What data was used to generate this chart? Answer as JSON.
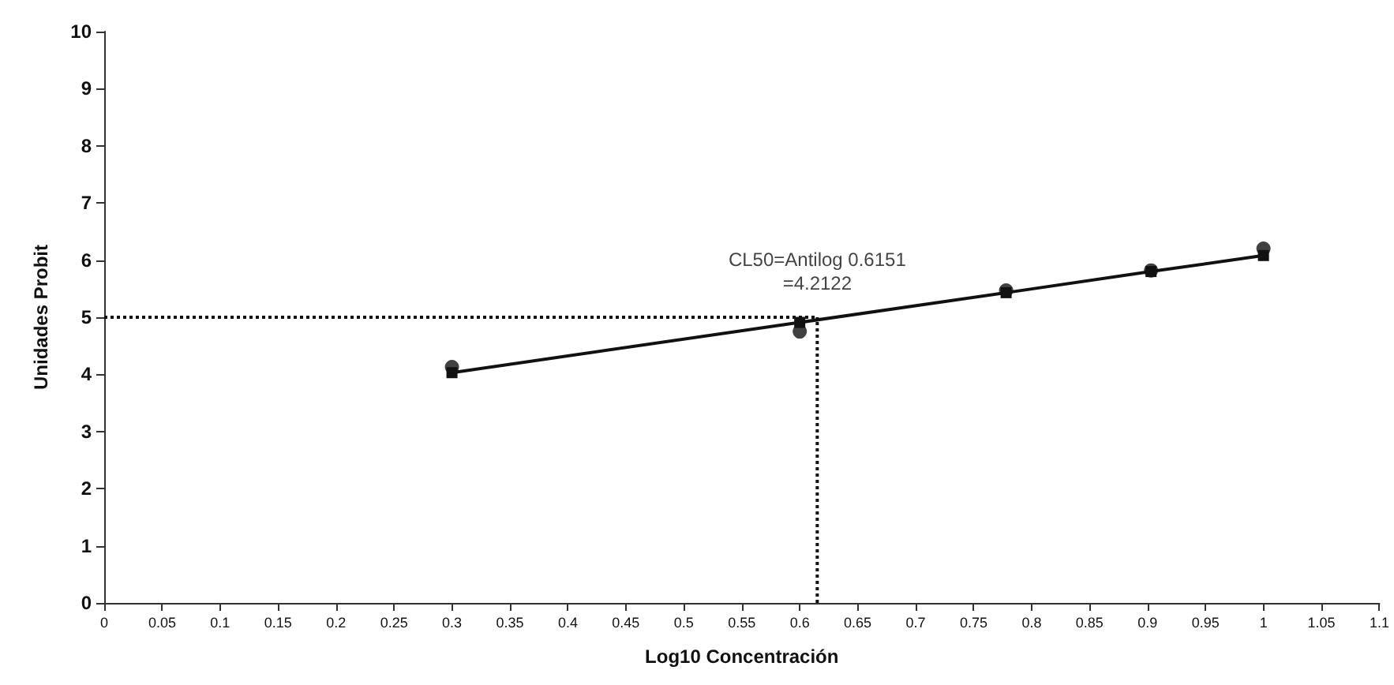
{
  "chart_data": {
    "type": "scatter",
    "xlabel": "Log10 Concentración",
    "ylabel": "Unidades Probit",
    "xlim": [
      0,
      1.1
    ],
    "xticks": [
      0,
      0.05,
      0.1,
      0.15,
      0.2,
      0.25,
      0.3,
      0.35,
      0.4,
      0.45,
      0.5,
      0.55,
      0.6,
      0.65,
      0.7,
      0.75,
      0.8,
      0.85,
      0.9,
      0.95,
      1,
      1.05,
      1.1
    ],
    "ylim": [
      0,
      10
    ],
    "yticks": [
      0,
      1,
      2,
      3,
      4,
      5,
      6,
      7,
      8,
      9,
      10
    ],
    "grid": false,
    "legend": false,
    "series": [
      {
        "color": "#111111",
        "marker": "circle",
        "x": [
          0.3,
          0.6,
          0.778,
          0.903,
          1.0
        ],
        "values": [
          4.13,
          4.75,
          5.47,
          5.82,
          6.2
        ]
      },
      {
        "type": "line",
        "color": "#111111",
        "marker": "square",
        "line_style": "solid",
        "x": [
          0.3,
          0.6,
          0.778,
          0.903,
          1.0
        ],
        "values": [
          4.03,
          4.91,
          5.43,
          5.8,
          6.08
        ]
      }
    ],
    "ref_lines": [
      {
        "axis": "y",
        "value": 5,
        "line_style": "dotted",
        "color": "#111111"
      },
      {
        "axis": "x",
        "value": 0.6151,
        "line_style": "dotted",
        "color": "#111111"
      }
    ],
    "annotations": [
      {
        "text": "CL50=Antilog 0.6151\n=4.2122",
        "x": 0.6151,
        "y": 5
      }
    ]
  }
}
